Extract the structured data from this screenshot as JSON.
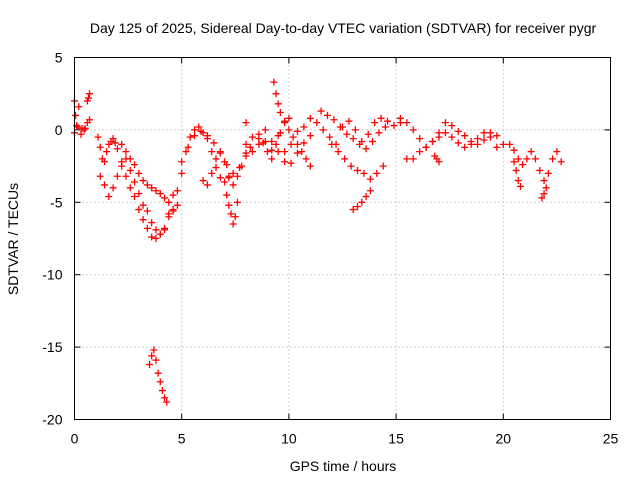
{
  "chart_data": {
    "type": "scatter",
    "title": "Day 125 of 2025, Sidereal Day-to-day VTEC variation (SDTVAR) for receiver pygr",
    "xlabel": "GPS time / hours",
    "ylabel": "SDTVAR / TECUs",
    "xlim": [
      0,
      25
    ],
    "ylim": [
      -20,
      5
    ],
    "xticks": [
      0,
      5,
      10,
      15,
      20,
      25
    ],
    "xtick_labels": [
      "0",
      "5",
      "10",
      "15",
      "20",
      "25"
    ],
    "yticks": [
      5,
      0,
      -5,
      -10,
      -15,
      -20
    ],
    "ytick_labels": [
      "5",
      "0",
      "-5",
      "-10",
      "-15",
      "-20"
    ],
    "grid": true,
    "marker": "+",
    "marker_color": "#ff0000",
    "series": [
      {
        "name": "SDTVAR",
        "x": [
          0.0,
          0.05,
          0.15,
          0.3,
          0.45,
          0.6,
          0.7,
          0.0,
          0.1,
          0.2,
          0.35,
          0.5,
          0.6,
          0.65,
          0.7,
          1.1,
          1.2,
          1.3,
          1.4,
          1.5,
          1.6,
          1.7,
          1.8,
          1.9,
          2.0,
          2.2,
          2.4,
          2.6,
          2.8,
          3.0,
          3.2,
          3.4,
          3.6,
          3.8,
          4.0,
          4.2,
          4.4,
          4.6,
          1.2,
          1.4,
          1.6,
          1.8,
          2.0,
          2.2,
          2.4,
          2.6,
          2.8,
          3.0,
          3.2,
          3.4,
          3.6,
          3.8,
          4.0,
          4.2,
          4.4,
          2.2,
          2.4,
          2.6,
          2.8,
          3.0,
          3.2,
          3.4,
          3.6,
          3.8,
          4.0,
          4.2,
          4.4,
          4.6,
          4.8,
          3.5,
          3.6,
          3.7,
          3.8,
          3.9,
          4.0,
          4.1,
          4.2,
          4.3,
          4.6,
          4.8,
          5.0,
          5.2,
          5.4,
          5.6,
          5.8,
          6.0,
          6.2,
          6.4,
          6.6,
          6.8,
          7.0,
          7.2,
          5.0,
          5.3,
          5.6,
          5.9,
          6.2,
          6.5,
          6.8,
          7.1,
          7.4,
          7.7,
          8.0,
          8.2,
          6.0,
          6.2,
          6.4,
          6.6,
          6.8,
          7.0,
          7.2,
          7.4,
          7.6,
          7.8,
          8.0,
          7.1,
          7.2,
          7.3,
          7.4,
          7.5,
          7.6,
          8.0,
          8.3,
          8.6,
          8.9,
          9.2,
          9.5,
          9.8,
          10.1,
          10.4,
          10.7,
          11.0,
          8.0,
          8.3,
          8.6,
          8.9,
          9.2,
          9.5,
          9.8,
          10.1,
          10.4,
          10.7,
          8.6,
          8.8,
          9.0,
          9.2,
          9.4,
          9.6,
          9.8,
          10.0,
          9.3,
          9.4,
          9.5,
          9.6,
          9.8,
          10.0,
          10.2,
          10.4,
          10.6,
          10.8,
          11.0,
          11.0,
          11.3,
          11.6,
          11.9,
          12.2,
          12.5,
          12.8,
          13.1,
          13.4,
          13.7,
          14.0,
          14.3,
          14.6,
          14.9,
          15.2,
          11.5,
          11.8,
          12.1,
          12.4,
          12.7,
          13.0,
          13.3,
          13.6,
          13.9,
          14.2,
          14.5,
          12.0,
          12.3,
          12.6,
          12.9,
          13.2,
          13.5,
          13.8,
          14.1,
          14.4,
          13.0,
          13.2,
          13.4,
          13.6,
          13.8,
          15.2,
          15.5,
          15.8,
          16.1,
          16.4,
          16.7,
          17.0,
          17.3,
          17.6,
          17.9,
          18.2,
          18.5,
          18.8,
          19.1,
          19.4,
          19.7,
          20.0,
          15.5,
          15.8,
          16.1,
          16.4,
          16.7,
          17.0,
          17.3,
          17.6,
          17.9,
          18.2,
          18.5,
          18.8,
          19.1,
          19.4,
          19.7,
          16.8,
          16.9,
          17.0,
          20.3,
          20.5,
          20.7,
          20.9,
          21.1,
          21.3,
          21.5,
          21.7,
          21.9,
          22.1,
          22.3,
          22.5,
          22.7,
          20.5,
          20.6,
          20.7,
          20.8,
          21.8,
          21.9,
          22.0
        ],
        "y": [
          2.0,
          1.0,
          0.2,
          -0.3,
          0.0,
          0.5,
          2.5,
          -0.2,
          0.3,
          1.6,
          0.1,
          0.1,
          2.0,
          2.2,
          0.7,
          -0.5,
          -1.2,
          -2.0,
          -2.2,
          -1.5,
          -1.0,
          -0.8,
          -0.6,
          -0.9,
          -1.3,
          -2.5,
          -3.2,
          -4.0,
          -4.6,
          -5.5,
          -6.2,
          -6.8,
          -7.4,
          -7.5,
          -7.2,
          -6.9,
          -5.8,
          -4.5,
          -3.2,
          -3.8,
          -4.6,
          -4.0,
          -3.2,
          -2.2,
          -2.0,
          -2.8,
          -3.6,
          -4.4,
          -5.2,
          -5.6,
          -6.4,
          -6.9,
          -7.2,
          -6.8,
          -6.0,
          -1.0,
          -1.5,
          -2.0,
          -2.4,
          -3.0,
          -3.5,
          -3.8,
          -4.0,
          -4.2,
          -4.4,
          -4.7,
          -5.0,
          -5.6,
          -5.2,
          -16.2,
          -15.6,
          -15.2,
          -15.9,
          -16.8,
          -17.4,
          -18.0,
          -18.5,
          -18.8,
          -5.5,
          -4.2,
          -3.0,
          -1.5,
          -0.5,
          0.0,
          0.2,
          -0.2,
          -0.6,
          -1.5,
          -2.6,
          -3.3,
          -3.6,
          -3.3,
          -2.2,
          -1.2,
          -0.4,
          -0.1,
          -0.4,
          -0.9,
          -1.6,
          -2.4,
          -3.0,
          -2.6,
          -1.8,
          -1.2,
          -3.5,
          -3.8,
          -3.0,
          -2.0,
          -1.5,
          -2.2,
          -3.2,
          -3.8,
          -3.2,
          -2.5,
          -1.6,
          -4.5,
          -5.2,
          -5.8,
          -6.5,
          -6.0,
          -5.0,
          -1.0,
          -1.5,
          -0.6,
          -0.8,
          -1.4,
          -0.4,
          -1.5,
          -2.3,
          -1.6,
          -0.9,
          -0.4,
          0.5,
          -0.5,
          -1.0,
          0.0,
          -0.8,
          -1.5,
          -2.2,
          -1.0,
          -0.1,
          0.2,
          -0.3,
          -0.9,
          -1.5,
          -2.0,
          -1.0,
          -0.2,
          0.5,
          0.8,
          3.3,
          2.5,
          1.8,
          1.2,
          0.6,
          0.0,
          -0.5,
          -1.0,
          -1.5,
          -2.0,
          -2.5,
          0.8,
          0.5,
          0.0,
          -0.5,
          -1.0,
          0.2,
          0.6,
          0.0,
          -0.8,
          -0.3,
          0.5,
          0.8,
          0.6,
          0.3,
          0.5,
          1.3,
          1.0,
          0.7,
          0.2,
          -0.3,
          -0.6,
          -1.0,
          -1.3,
          -0.8,
          -0.2,
          0.2,
          -1.0,
          -1.5,
          -2.0,
          -2.5,
          -2.8,
          -3.0,
          -3.4,
          -3.0,
          -2.5,
          -5.5,
          -5.3,
          -5.0,
          -4.6,
          -4.2,
          0.8,
          0.5,
          0.0,
          -0.6,
          -1.2,
          -0.8,
          -0.2,
          0.5,
          0.3,
          -0.1,
          -0.4,
          -0.8,
          -1.0,
          -0.7,
          -0.2,
          -0.4,
          -1.0,
          -2.0,
          -2.0,
          -1.5,
          -1.2,
          -0.8,
          -0.5,
          -0.2,
          -0.5,
          -0.9,
          -1.2,
          -1.0,
          -0.6,
          -0.2,
          -0.5,
          -1.2,
          -1.8,
          -2.0,
          -2.2,
          -1.0,
          -1.4,
          -2.0,
          -2.4,
          -2.0,
          -1.5,
          -2.0,
          -2.8,
          -3.5,
          -3.0,
          -2.0,
          -1.5,
          -2.2,
          -2.2,
          -2.8,
          -3.5,
          -3.9,
          -4.7,
          -4.4,
          -4.0
        ]
      }
    ]
  }
}
